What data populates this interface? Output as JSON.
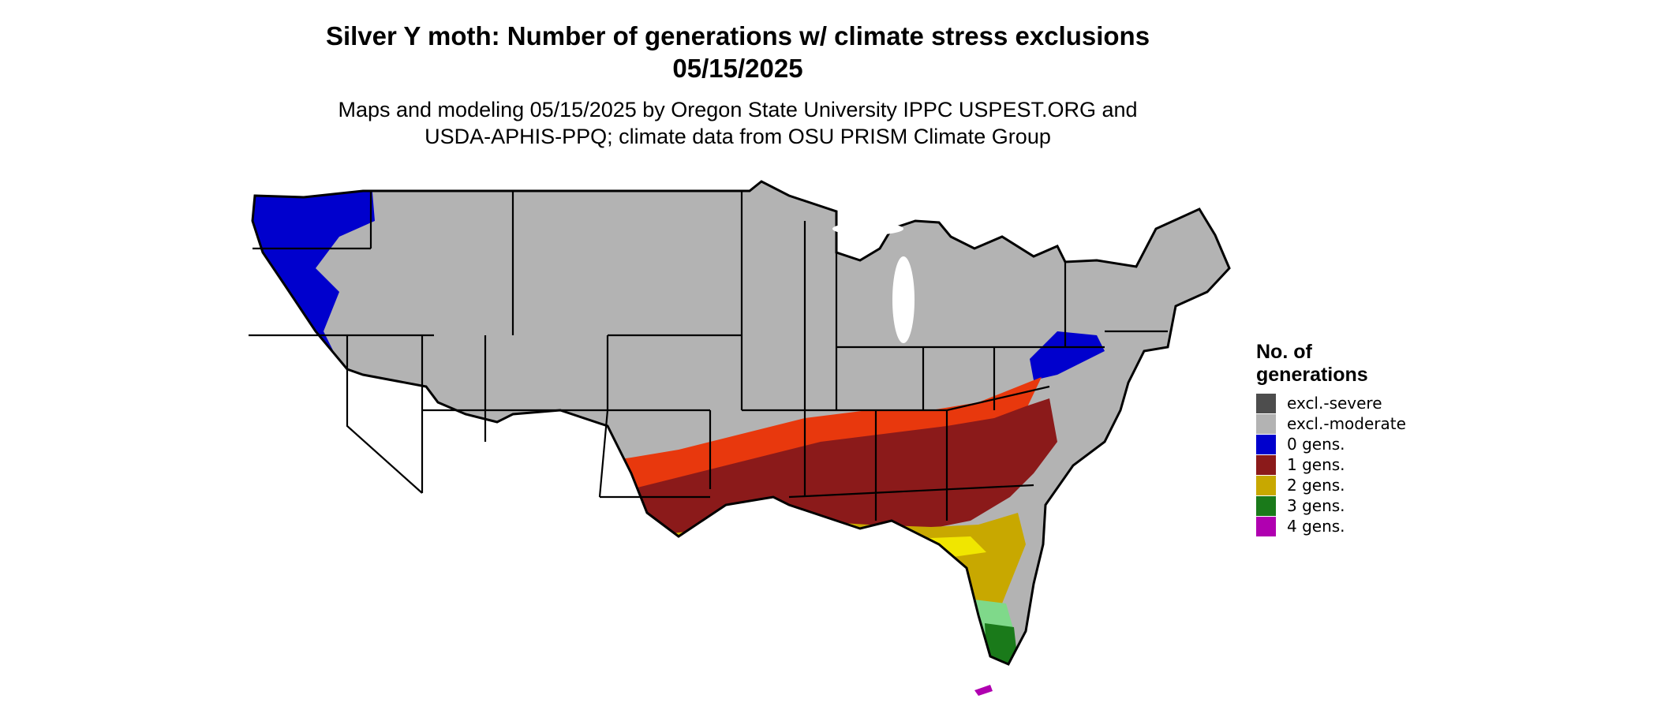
{
  "title_line1": "Silver Y moth: Number of generations w/ climate stress exclusions",
  "title_line2": "05/15/2025",
  "subtitle_line1": "Maps and modeling 05/15/2025 by Oregon State University IPPC USPEST.ORG and",
  "subtitle_line2": "USDA-APHIS-PPQ; climate data from OSU PRISM Climate Group",
  "legend": {
    "title_line1": "No. of",
    "title_line2": "generations",
    "items": [
      {
        "label": "excl.-severe",
        "color": "#4d4d4d"
      },
      {
        "label": "excl.-moderate",
        "color": "#b3b3b3"
      },
      {
        "label": "0 gens.",
        "color": "#0000cd"
      },
      {
        "label": "1 gens.",
        "color": "#8b1a1a"
      },
      {
        "label": "2 gens.",
        "color": "#c8a800"
      },
      {
        "label": "3 gens.",
        "color": "#1a7a1a"
      },
      {
        "label": "4 gens.",
        "color": "#b000b0"
      }
    ]
  },
  "map_colors": {
    "excluded_moderate": "#b3b3b3",
    "zero_gens": "#0000cd",
    "one_gen": "#8b1a1a",
    "one_gen_light": "#e8380d",
    "two_gens": "#c8a800",
    "two_gens_light": "#f0e600",
    "three_gens": "#1a7a1a",
    "three_gens_light": "#7fd98a",
    "four_gens": "#b000b0",
    "state_border": "#000000"
  }
}
